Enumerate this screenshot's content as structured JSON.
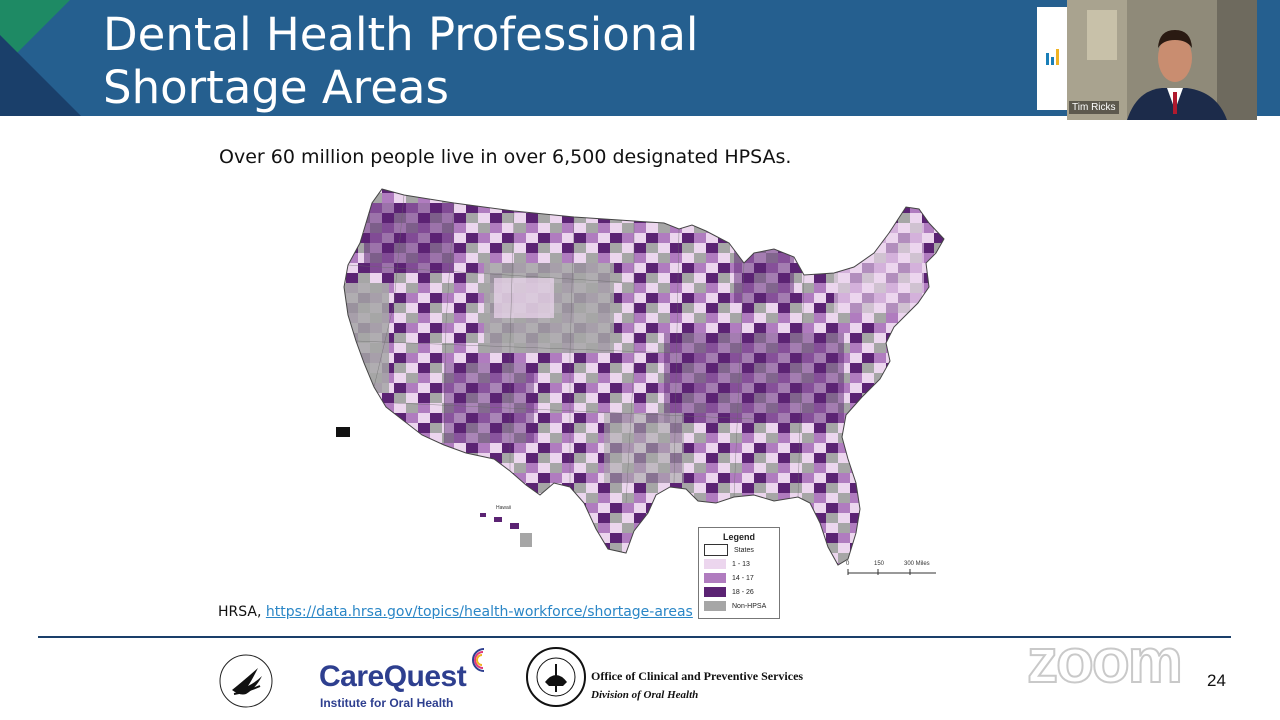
{
  "slide": {
    "title_line1": "Dental Health Professional",
    "title_line2": "Shortage Areas",
    "subtitle": "Over 60 million people live in over 6,500 designated HPSAs.",
    "source_prefix": "HRSA, ",
    "source_link": "https://data.hrsa.gov/topics/health-workforce/shortage-areas",
    "page_number": "24"
  },
  "video": {
    "participant_name": "Tim Ricks"
  },
  "map": {
    "legend": {
      "title": "Legend",
      "items": [
        {
          "label": "States",
          "color": "#ffffff"
        },
        {
          "label": "1 - 13",
          "color": "#ecd6ee"
        },
        {
          "label": "14 - 17",
          "color": "#b07cbf"
        },
        {
          "label": "18 - 26",
          "color": "#5b2373"
        },
        {
          "label": "Non-HPSA",
          "color": "#a6a6a6"
        }
      ]
    },
    "scale": {
      "ticks": [
        "0",
        "150",
        "300 Miles"
      ]
    },
    "hawaii_label": "Hawaii"
  },
  "footer": {
    "carequest_name": "CareQuest",
    "carequest_sub": "Institute for Oral Health",
    "ihs_line1": "Office of Clinical and Preventive Services",
    "ihs_line2": "Division of Oral Health",
    "watermark": "zoom"
  },
  "colors": {
    "header_bg": "#255f8f",
    "accent_green": "#1e8a64",
    "link": "#2a86c6",
    "divider": "#1a3f6a"
  }
}
